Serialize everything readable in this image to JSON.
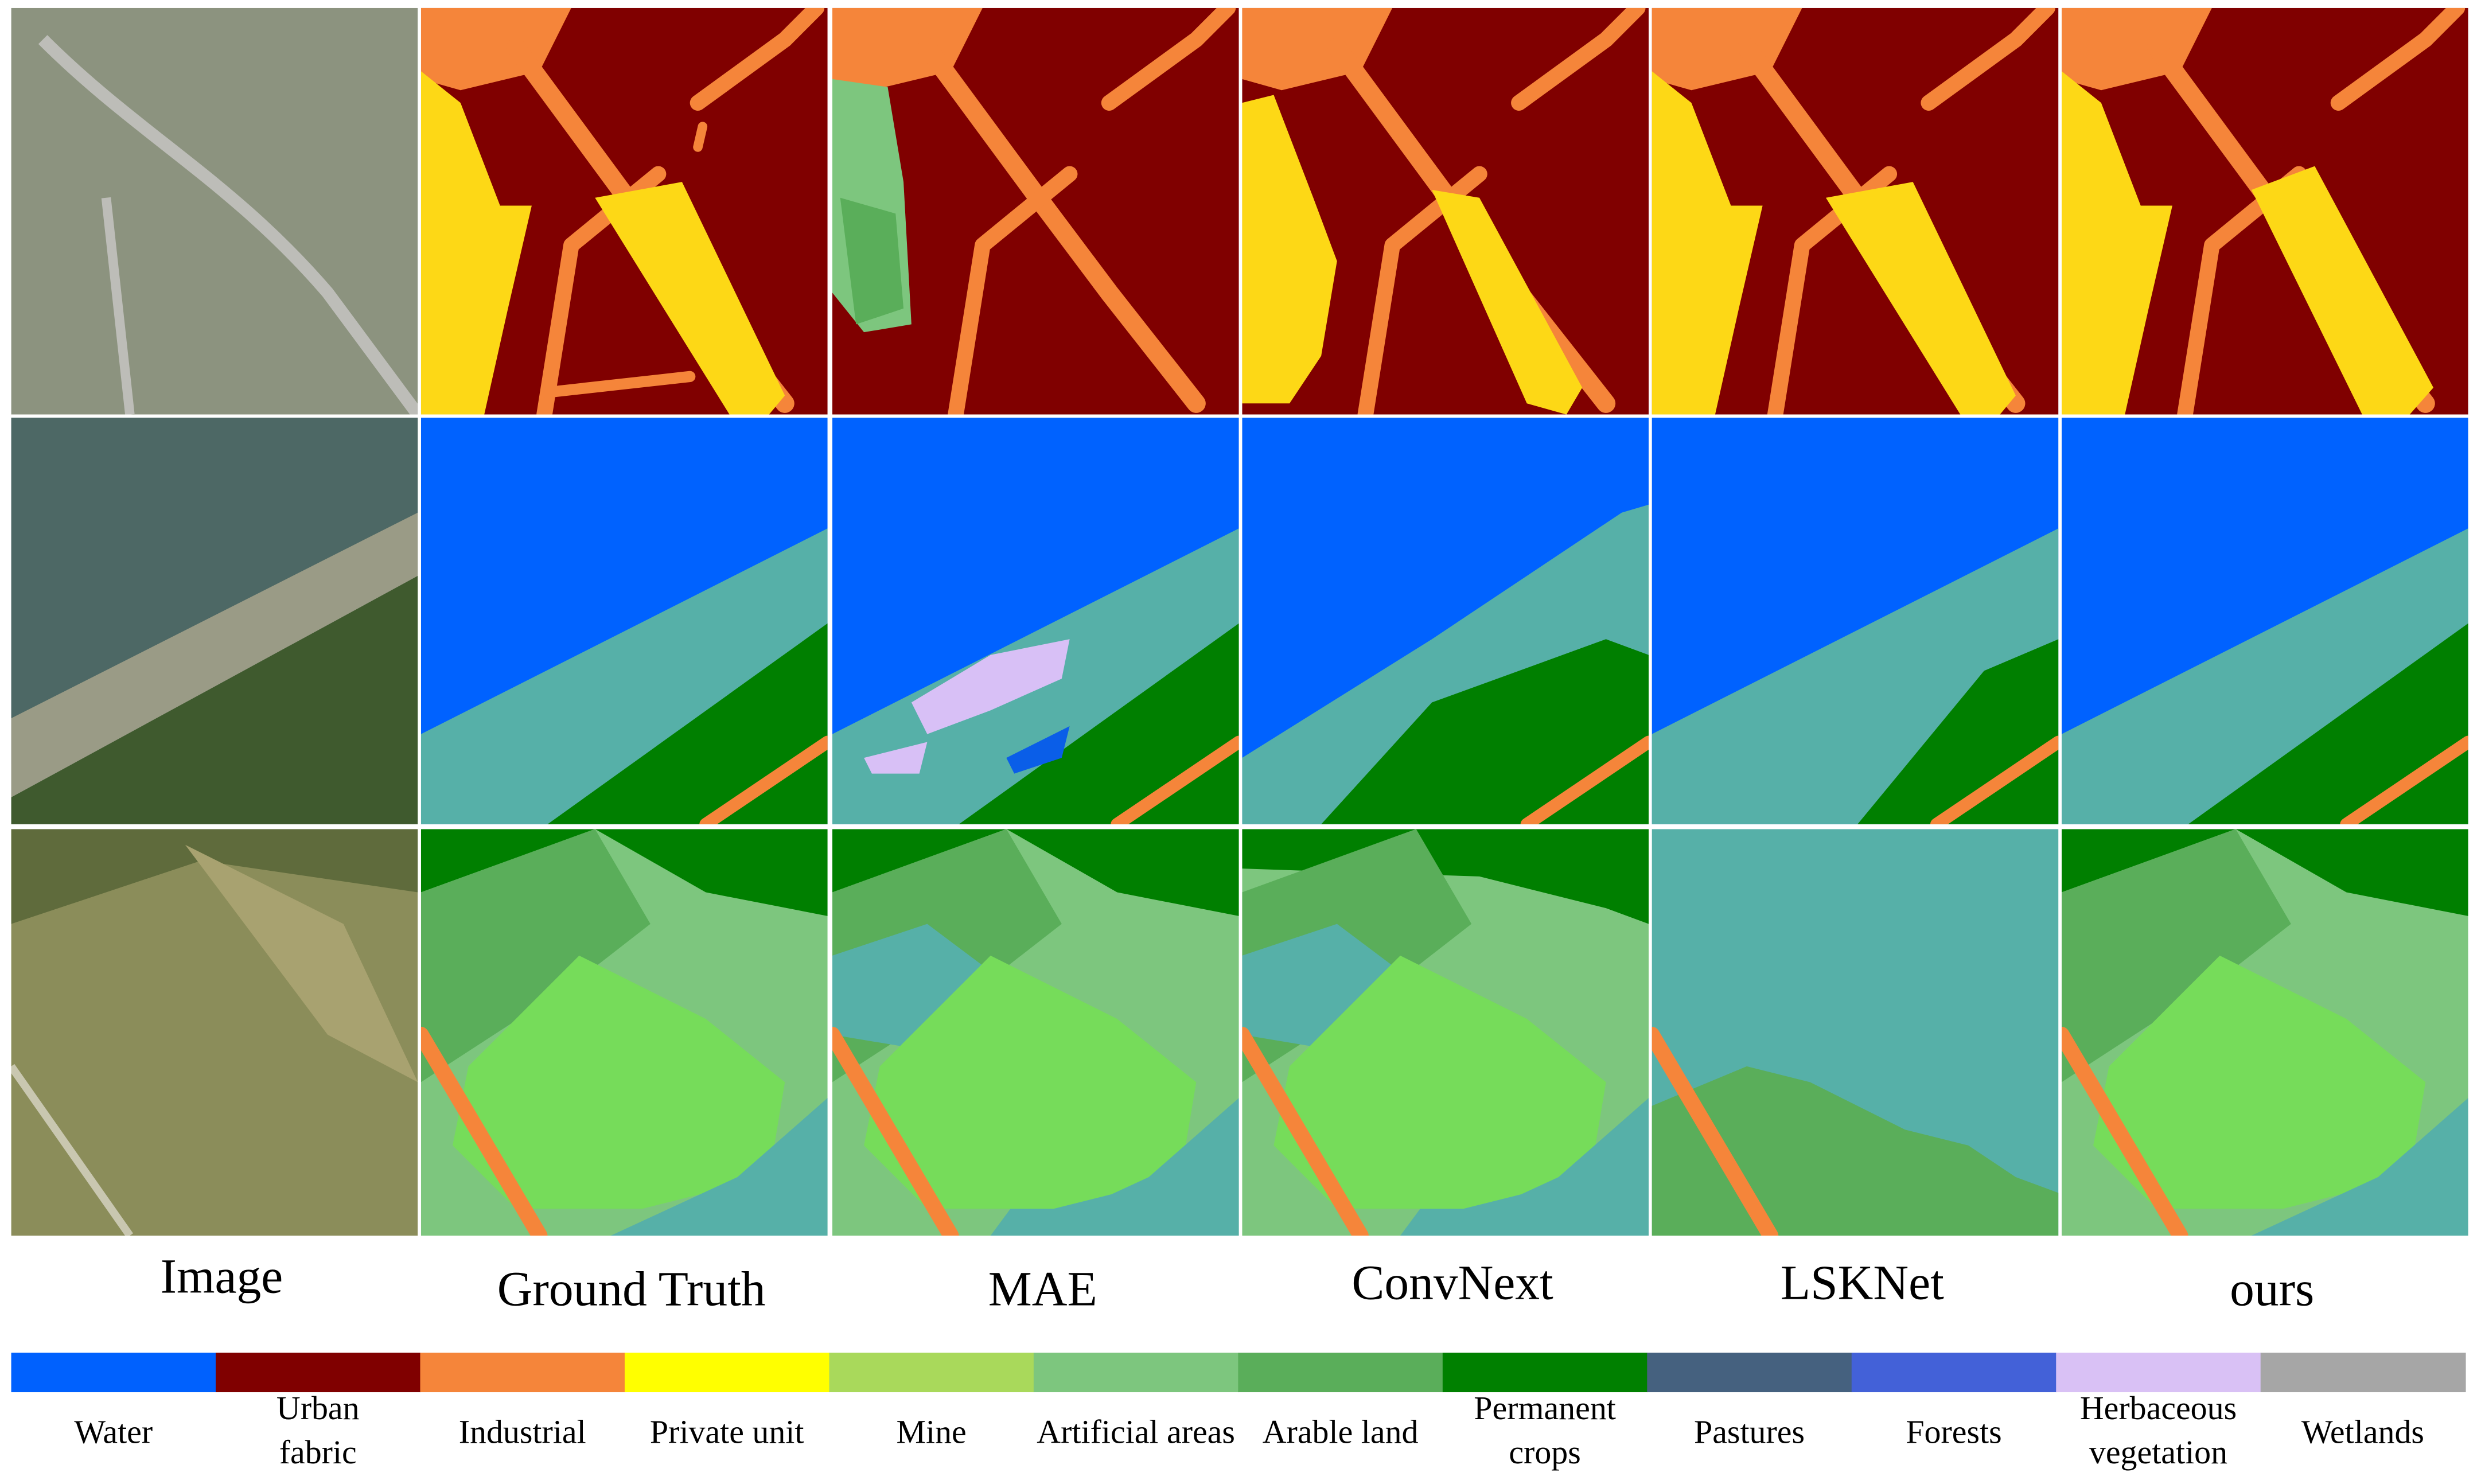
{
  "columns": [
    "Image",
    "Ground Truth",
    "MAE",
    "ConvNext",
    "LSKNet",
    "ours"
  ],
  "legend": [
    {
      "label": [
        "Water"
      ],
      "color": "#0061fe"
    },
    {
      "label": [
        "Urban",
        "fabric"
      ],
      "color": "#800000"
    },
    {
      "label": [
        "Industrial"
      ],
      "color": "#f5853a"
    },
    {
      "label": [
        "Private unit"
      ],
      "color": "#ffff00"
    },
    {
      "label": [
        "Mine"
      ],
      "color": "#a9d95b"
    },
    {
      "label": [
        "Artificial areas"
      ],
      "color": "#7dc67e"
    },
    {
      "label": [
        "Arable land"
      ],
      "color": "#5aae5a"
    },
    {
      "label": [
        "Permanent",
        "crops"
      ],
      "color": "#008000"
    },
    {
      "label": [
        "Pastures"
      ],
      "color": "#45617f"
    },
    {
      "label": [
        "Forests"
      ],
      "color": "#4361d8"
    },
    {
      "label": [
        "Herbaceous",
        "vegetation"
      ],
      "color": "#d9c1f5"
    },
    {
      "label": [
        "Wetlands"
      ],
      "color": "#a6a6a6"
    }
  ]
}
